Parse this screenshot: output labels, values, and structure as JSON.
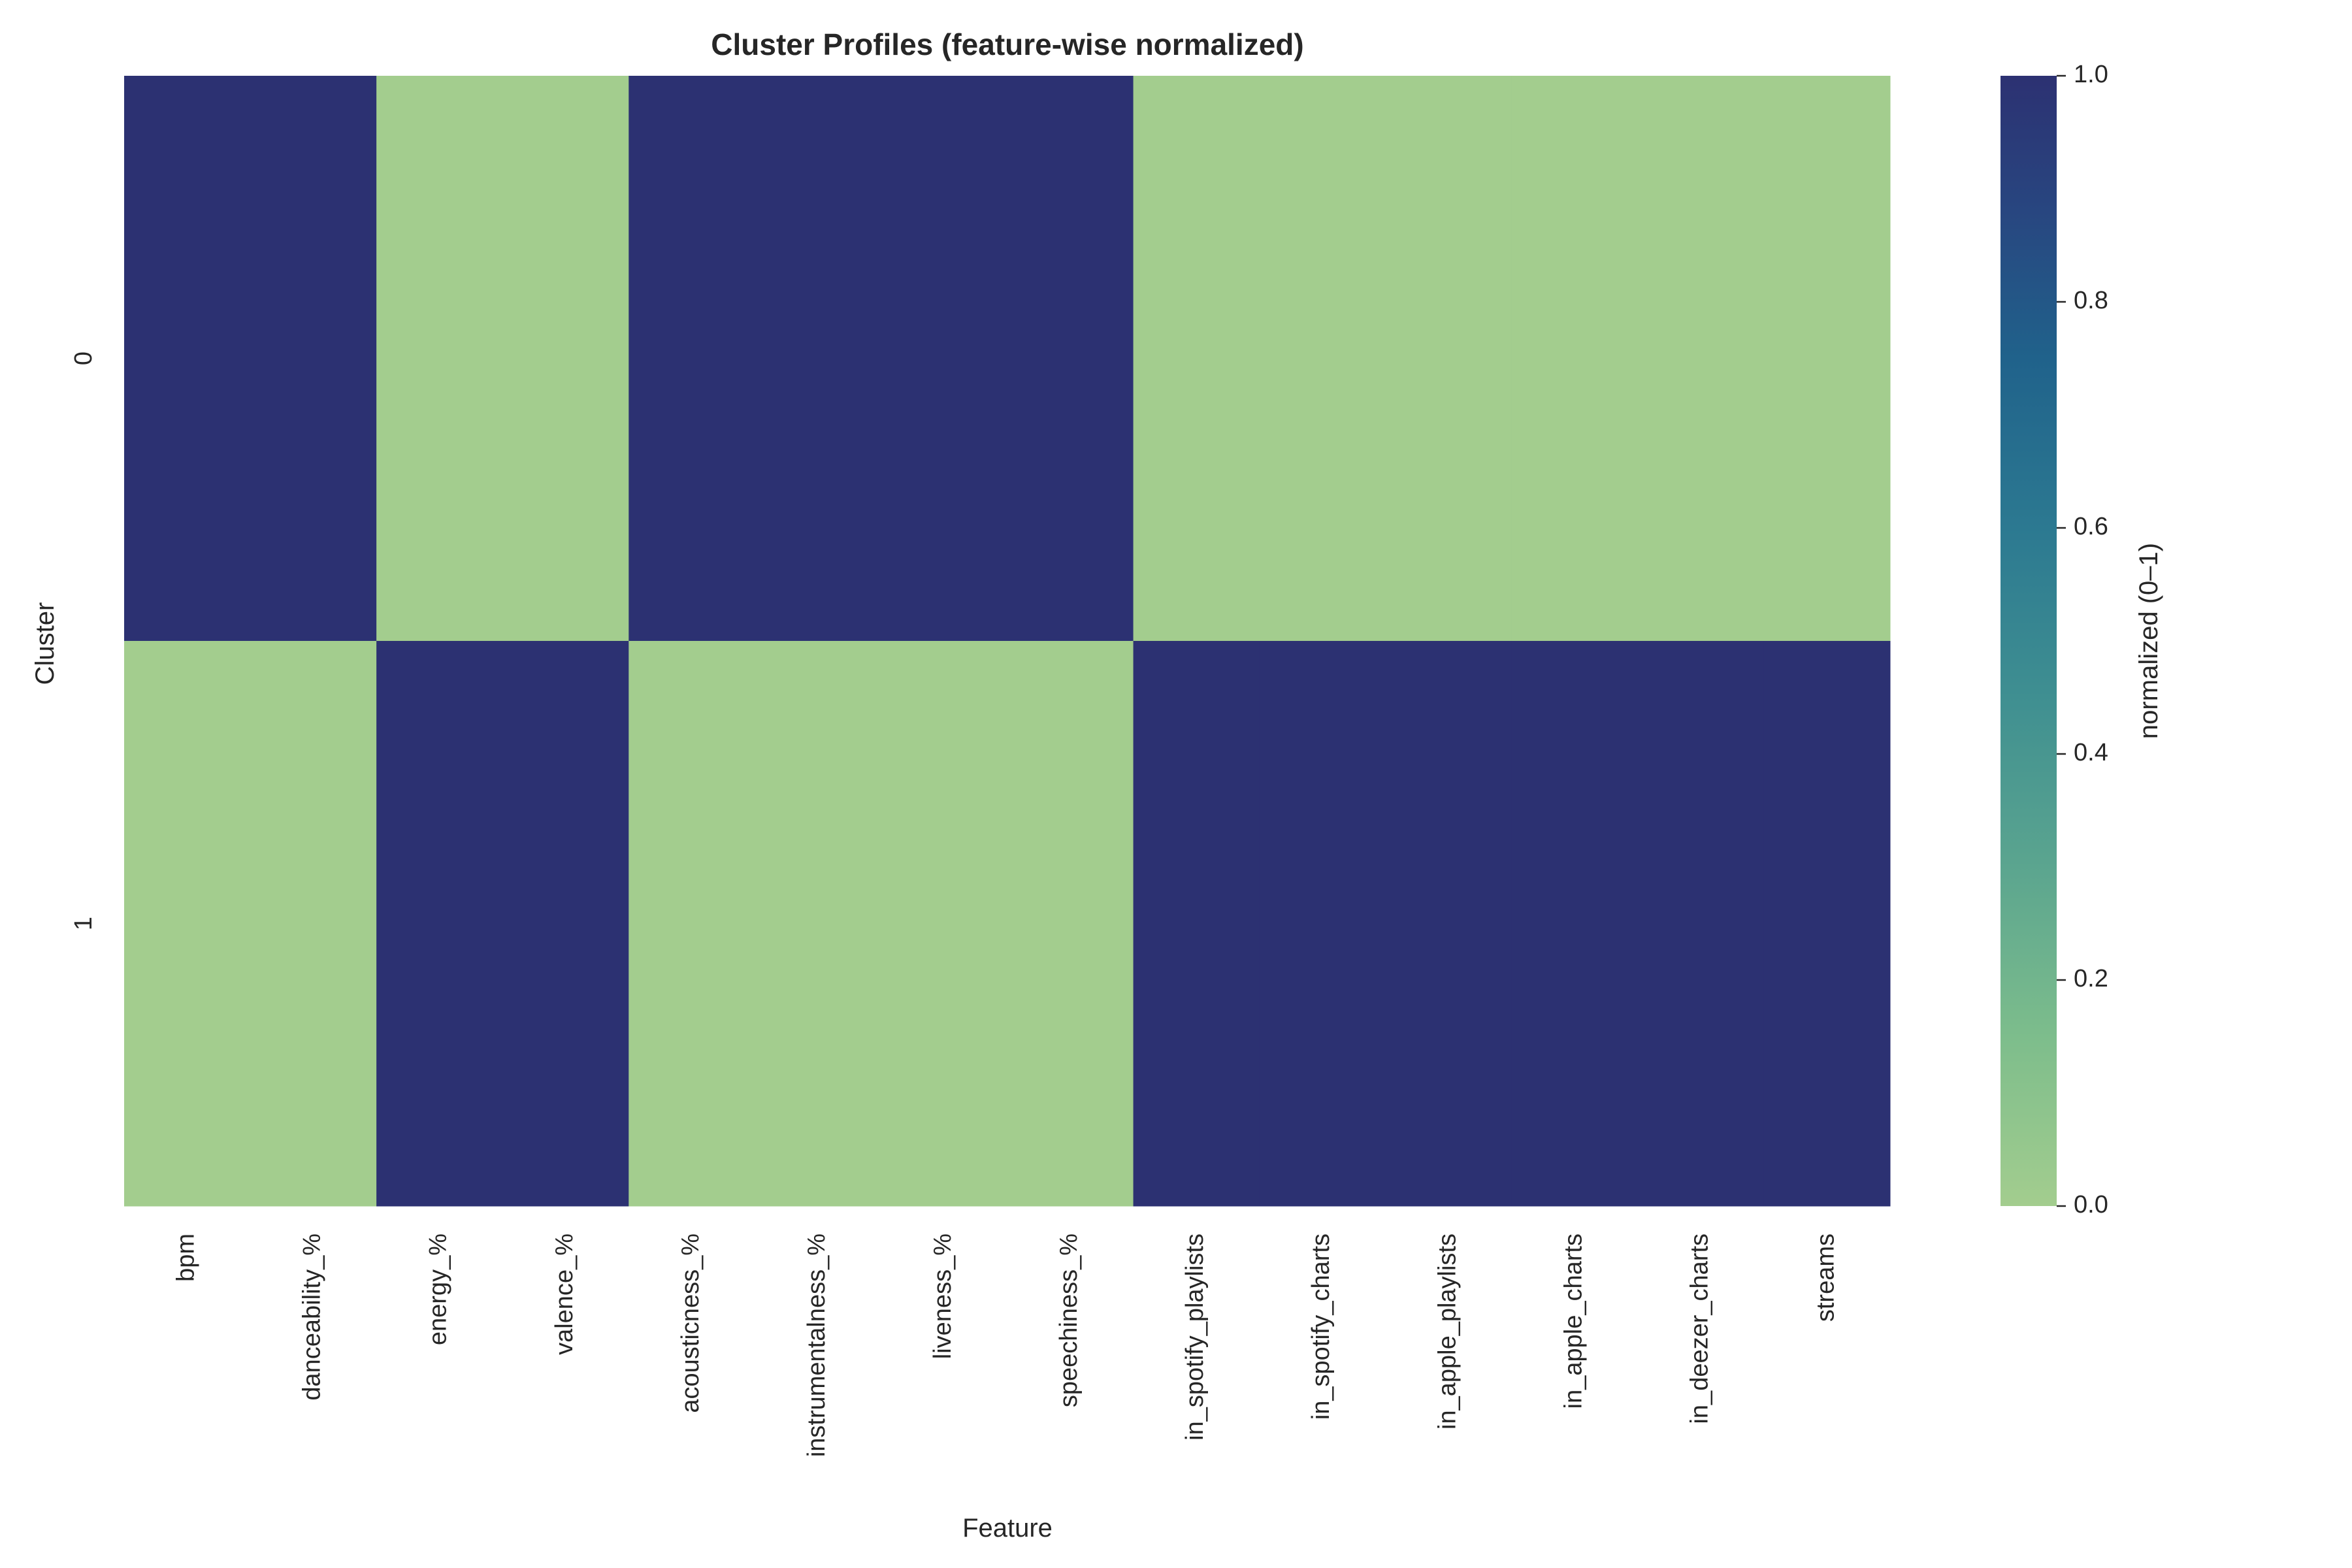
{
  "chart_data": {
    "type": "heatmap",
    "title": "Cluster Profiles (feature-wise normalized)",
    "xlabel": "Feature",
    "ylabel": "Cluster",
    "x_categories": [
      "bpm",
      "danceability_%",
      "energy_%",
      "valence_%",
      "acousticness_%",
      "instrumentalness_%",
      "liveness_%",
      "speechiness_%",
      "in_spotify_playlists",
      "in_spotify_charts",
      "in_apple_playlists",
      "in_apple_charts",
      "in_deezer_charts",
      "streams"
    ],
    "y_categories": [
      "0",
      "1"
    ],
    "values": [
      [
        1,
        1,
        0,
        0,
        1,
        1,
        1,
        1,
        0,
        0,
        0,
        0,
        0,
        0
      ],
      [
        0,
        0,
        1,
        1,
        0,
        0,
        0,
        0,
        1,
        1,
        1,
        1,
        1,
        1
      ]
    ],
    "colorbar": {
      "label": "normalized (0–1)",
      "range": [
        0,
        1
      ],
      "ticks": [
        "0.0",
        "0.2",
        "0.4",
        "0.6",
        "0.8",
        "1.0"
      ],
      "colormap": "crest",
      "low_color": "#a3cd8e",
      "high_color": "#2c3172"
    },
    "grid": false,
    "legend": "colorbar-right"
  }
}
